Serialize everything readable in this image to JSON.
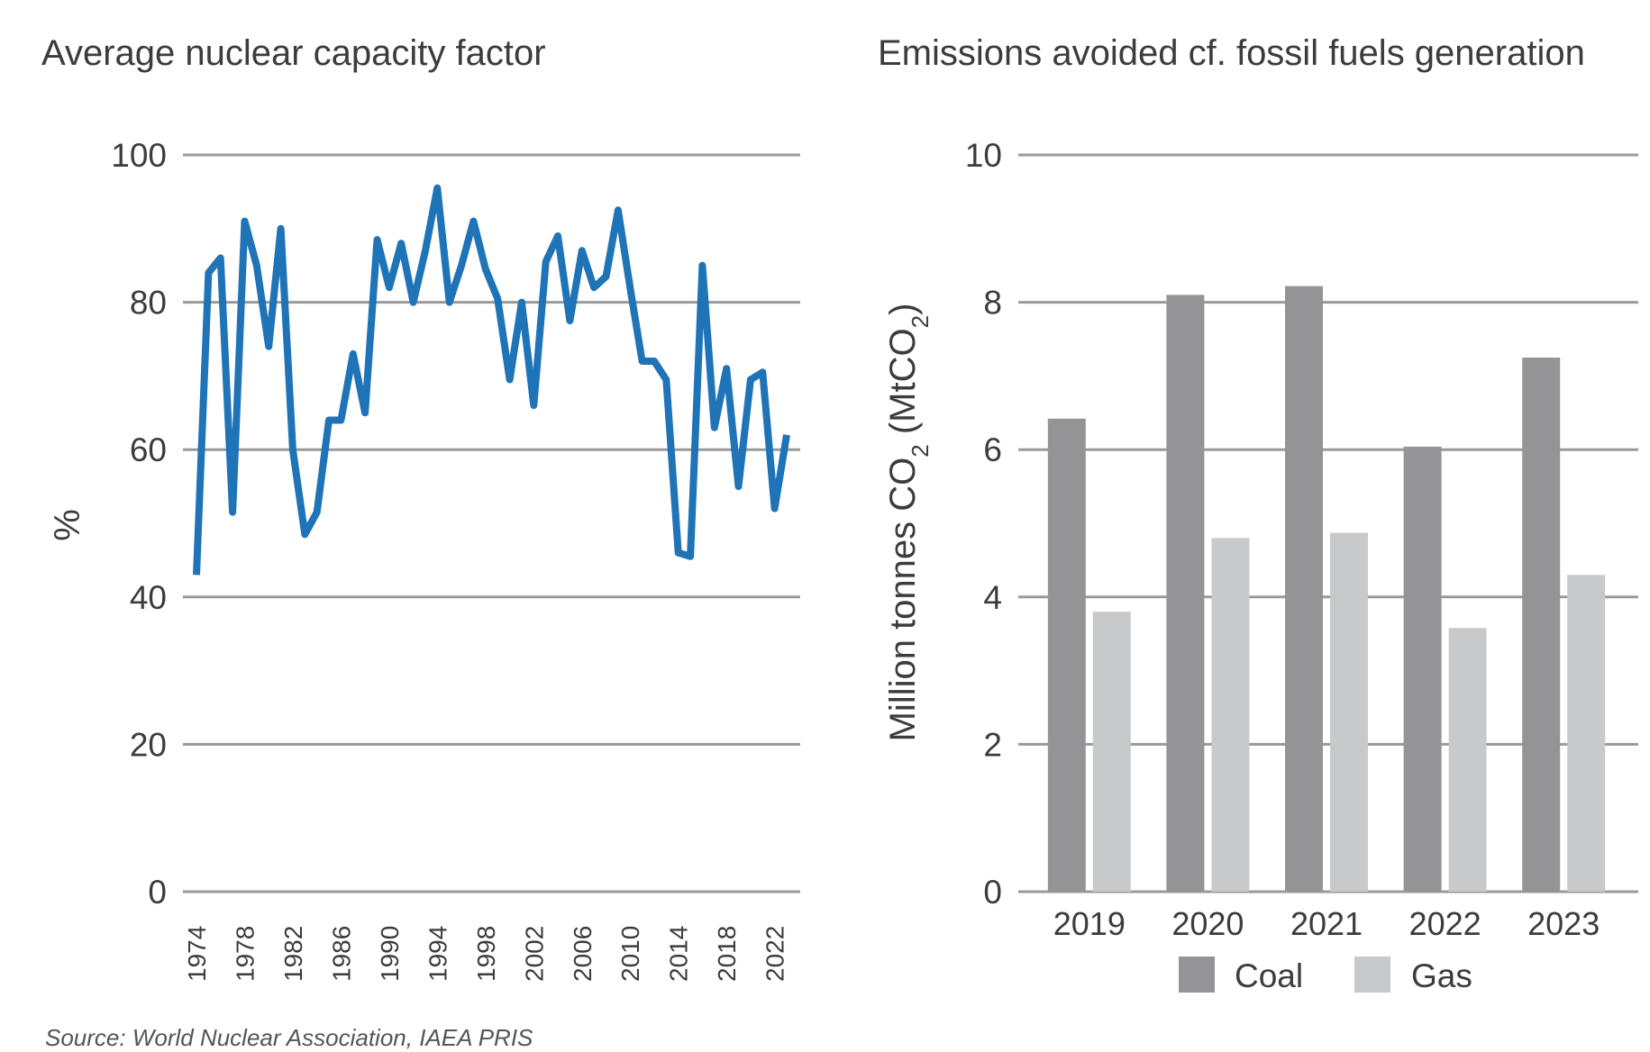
{
  "chart_data": [
    {
      "type": "line",
      "title": "Average nuclear capacity factor",
      "ylabel": "%",
      "ylim": [
        0,
        100
      ],
      "yticks": [
        "0",
        "20",
        "40",
        "60",
        "80",
        "100"
      ],
      "grid": true,
      "xtick_labels": [
        "1974",
        "1978",
        "1982",
        "1986",
        "1990",
        "1994",
        "1998",
        "2002",
        "2006",
        "2010",
        "2014",
        "2018",
        "2022"
      ],
      "x": [
        1974,
        1975,
        1976,
        1977,
        1978,
        1979,
        1980,
        1981,
        1982,
        1983,
        1984,
        1985,
        1986,
        1987,
        1988,
        1989,
        1990,
        1991,
        1992,
        1993,
        1994,
        1995,
        1996,
        1997,
        1998,
        1999,
        2000,
        2001,
        2002,
        2003,
        2004,
        2005,
        2006,
        2007,
        2008,
        2009,
        2010,
        2011,
        2012,
        2013,
        2014,
        2015,
        2016,
        2017,
        2018,
        2019,
        2020,
        2021,
        2022,
        2023
      ],
      "series": [
        {
          "color": "#1f73b7",
          "values": [
            43,
            84,
            86,
            51.5,
            91,
            85,
            74,
            90,
            60,
            48.5,
            51.5,
            64,
            64,
            73,
            65,
            88.5,
            82,
            88,
            80,
            87,
            95.5,
            80,
            85,
            91,
            84.5,
            80.5,
            69.5,
            80,
            66,
            85.5,
            89,
            77.5,
            87,
            82,
            83.5,
            92.5,
            82,
            72,
            72,
            69.5,
            46,
            45.5,
            85,
            63,
            71,
            55,
            69.5,
            70.5,
            52,
            62
          ]
        }
      ]
    },
    {
      "type": "bar",
      "title": "Emissions avoided cf. fossil fuels generation",
      "ylabel": "Million tonnes CO2 (MtCO2)",
      "ylabel_parts": [
        "Million tonnes CO",
        "2",
        " (MtCO",
        "2",
        ")"
      ],
      "ylim": [
        0,
        10
      ],
      "yticks": [
        "0",
        "2",
        "4",
        "6",
        "8",
        "10"
      ],
      "grid": true,
      "categories": [
        "2019",
        "2020",
        "2021",
        "2022",
        "2023"
      ],
      "series": [
        {
          "name": "Coal",
          "color": "#949496",
          "values": [
            6.42,
            8.1,
            8.22,
            6.04,
            7.25
          ]
        },
        {
          "name": "Gas",
          "color": "#c8c9cb",
          "values": [
            3.8,
            4.8,
            4.87,
            3.58,
            4.3
          ]
        }
      ],
      "legend": "bottom"
    }
  ],
  "source": "Source: World Nuclear Association, IAEA PRIS"
}
